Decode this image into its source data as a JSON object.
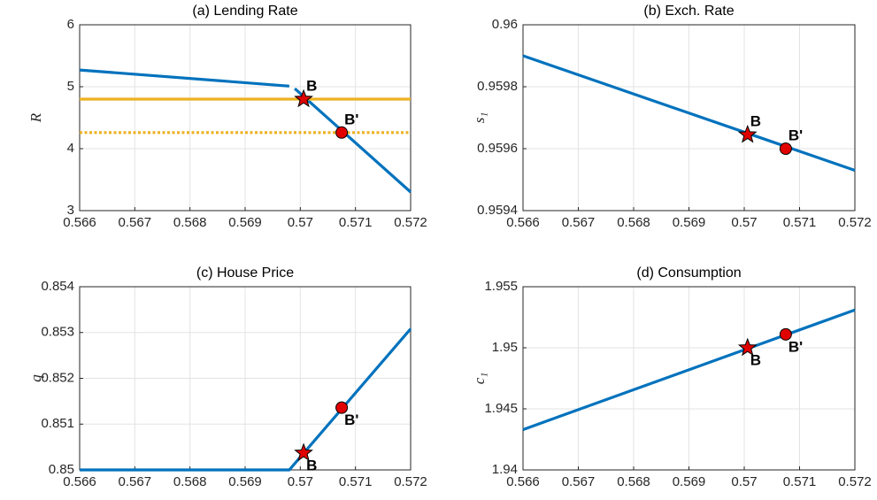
{
  "chart_data": [
    {
      "type": "line",
      "title": "(a) Lending Rate",
      "ylabel": "R",
      "xlim": [
        0.566,
        0.572
      ],
      "xticks": [
        0.566,
        0.567,
        0.568,
        0.569,
        0.57,
        0.571,
        0.572
      ],
      "ylim": [
        3,
        6
      ],
      "yticks": [
        3,
        4,
        5,
        6
      ],
      "grid": true,
      "series": [
        {
          "color": "#0072bd",
          "dash": "solid",
          "x": [
            0.566,
            0.5698,
            0.56985,
            0.5699,
            0.572
          ],
          "values": [
            5.27,
            5.01,
            null,
            4.97,
            3.3
          ]
        },
        {
          "color": "#edb120",
          "dash": "solid",
          "x": [
            0.566,
            0.572
          ],
          "values": [
            4.8,
            4.8
          ]
        },
        {
          "color": "#edb120",
          "dash": "dotted",
          "x": [
            0.566,
            0.572
          ],
          "values": [
            4.26,
            4.26
          ]
        }
      ],
      "markers": [
        {
          "label": "B",
          "shape": "star",
          "x": 0.57006,
          "y": 4.8,
          "label_position": "above-right"
        },
        {
          "label": "B'",
          "shape": "circle",
          "x": 0.57075,
          "y": 4.26,
          "label_position": "above-right"
        }
      ]
    },
    {
      "type": "line",
      "title": "(b) Exch. Rate",
      "ylabel": "s₁",
      "xlim": [
        0.566,
        0.572
      ],
      "xticks": [
        0.566,
        0.567,
        0.568,
        0.569,
        0.57,
        0.571,
        0.572
      ],
      "ylim": [
        0.9594,
        0.96
      ],
      "yticks": [
        0.9594,
        0.9596,
        0.9598,
        0.96
      ],
      "grid": true,
      "series": [
        {
          "color": "#0072bd",
          "dash": "solid",
          "x": [
            0.566,
            0.572
          ],
          "values": [
            0.9599,
            0.95953
          ]
        }
      ],
      "markers": [
        {
          "label": "B",
          "shape": "star",
          "x": 0.57006,
          "y": 0.959645,
          "label_position": "above-right"
        },
        {
          "label": "B'",
          "shape": "circle",
          "x": 0.57075,
          "y": 0.9596,
          "label_position": "above-right"
        }
      ]
    },
    {
      "type": "line",
      "title": "(c) House Price",
      "ylabel": "q",
      "xlim": [
        0.566,
        0.572
      ],
      "xticks": [
        0.566,
        0.567,
        0.568,
        0.569,
        0.57,
        0.571,
        0.572
      ],
      "ylim": [
        0.85,
        0.854
      ],
      "yticks": [
        0.85,
        0.851,
        0.852,
        0.853,
        0.854
      ],
      "grid": true,
      "series": [
        {
          "color": "#0072bd",
          "dash": "solid",
          "x": [
            0.566,
            0.5698,
            0.572
          ],
          "values": [
            0.85,
            0.85,
            0.85308
          ]
        }
      ],
      "markers": [
        {
          "label": "B",
          "shape": "star",
          "x": 0.57006,
          "y": 0.85037,
          "label_position": "below-right"
        },
        {
          "label": "B'",
          "shape": "circle",
          "x": 0.57075,
          "y": 0.85136,
          "label_position": "below-right"
        }
      ]
    },
    {
      "type": "line",
      "title": "(d) Consumption",
      "ylabel": "c₁",
      "xlim": [
        0.566,
        0.572
      ],
      "xticks": [
        0.566,
        0.567,
        0.568,
        0.569,
        0.57,
        0.571,
        0.572
      ],
      "ylim": [
        1.94,
        1.955
      ],
      "yticks": [
        1.94,
        1.945,
        1.95,
        1.955
      ],
      "grid": true,
      "series": [
        {
          "color": "#0072bd",
          "dash": "solid",
          "x": [
            0.566,
            0.572
          ],
          "values": [
            1.9433,
            1.9531
          ]
        }
      ],
      "markers": [
        {
          "label": "B",
          "shape": "star",
          "x": 0.57006,
          "y": 1.95,
          "label_position": "below-right"
        },
        {
          "label": "B'",
          "shape": "circle",
          "x": 0.57075,
          "y": 1.9511,
          "label_position": "below-right"
        }
      ]
    }
  ]
}
